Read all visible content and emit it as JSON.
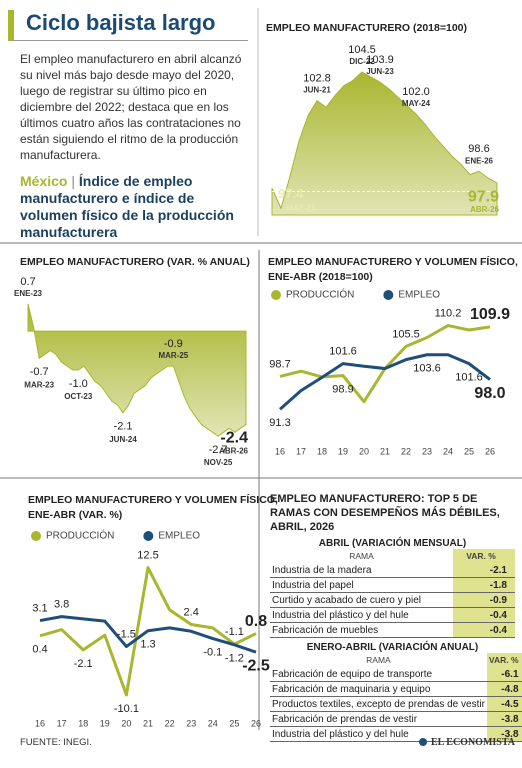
{
  "header": {
    "title": "Ciclo bajista largo",
    "body": "El empleo manufacturero en abril alcanzó su nivel más bajo desde mayo del 2020, luego de registrar su último pico en diciembre del 2022; destaca que en los últimos cuatro años las contrataciones no están siguiendo el ritmo de la producción manufacturera.",
    "country": "México",
    "subtitle": "Índice de empleo manufacturero e índice de volumen físico de la producción manufacturera"
  },
  "chart_data": [
    {
      "type": "area",
      "title": "EMPLEO MANUFACTURERO (2018=100)",
      "color": "#a9b62f",
      "categories": [
        null,
        null,
        null,
        null,
        null,
        "JUN-21",
        null,
        null,
        null,
        null,
        "DIC-22",
        null,
        "JUN-23",
        null,
        null,
        null,
        "MAY-24",
        null,
        null,
        null,
        null,
        null,
        null,
        "ENE-26",
        null,
        "ABR-26"
      ],
      "values": [
        97.6,
        96.4,
        98.3,
        100.4,
        101.9,
        102.8,
        102.4,
        103.1,
        103.7,
        104.0,
        104.5,
        104.2,
        103.9,
        103.5,
        103.0,
        102.5,
        102.0,
        101.4,
        100.7,
        100.1,
        99.5,
        99.0,
        98.4,
        98.6,
        98.2,
        97.9
      ],
      "value_labels": [
        null,
        null,
        null,
        null,
        null,
        "102.8",
        null,
        null,
        null,
        null,
        "104.5",
        null,
        "103.9",
        null,
        null,
        null,
        "102.0",
        null,
        null,
        null,
        null,
        null,
        null,
        "98.6",
        null,
        "97.9"
      ],
      "ref_line": {
        "value": 97.4,
        "label": "MAY-25"
      },
      "ylim": [
        96,
        104.5
      ]
    },
    {
      "type": "area",
      "title": "EMPLEO MANUFACTURERO (VAR. % ANUAL)",
      "color": "#a9b62f",
      "categories": [
        "ENE-23",
        null,
        "MAR-23",
        null,
        null,
        null,
        null,
        null,
        null,
        "OCT-23",
        null,
        null,
        null,
        null,
        null,
        null,
        null,
        "JUN-24",
        null,
        null,
        null,
        null,
        null,
        null,
        null,
        null,
        "MAR-25",
        null,
        null,
        null,
        null,
        null,
        null,
        null,
        "NOV-25",
        null,
        null,
        null,
        null,
        "ABR-26"
      ],
      "values": [
        0.7,
        0.1,
        -0.7,
        -0.6,
        -0.5,
        -0.6,
        -0.8,
        -0.9,
        -1.0,
        -1.0,
        -0.9,
        -1.1,
        -1.3,
        -1.4,
        -1.6,
        -1.8,
        -1.9,
        -2.1,
        -1.9,
        -1.6,
        -1.5,
        -1.4,
        -1.2,
        -1.1,
        -1.0,
        -0.9,
        -0.9,
        -1.3,
        -1.7,
        -2.0,
        -2.2,
        -2.4,
        -2.5,
        -2.6,
        -2.7,
        -2.6,
        -2.5,
        -2.6,
        -2.5,
        -2.4
      ],
      "value_labels": [
        "0.7",
        null,
        "-0.7",
        null,
        null,
        null,
        null,
        null,
        null,
        "-1.0",
        null,
        null,
        null,
        null,
        null,
        null,
        null,
        "-2.1",
        null,
        null,
        null,
        null,
        null,
        null,
        null,
        null,
        "-0.9",
        null,
        null,
        null,
        null,
        null,
        null,
        null,
        "-2.7",
        null,
        null,
        null,
        null,
        "-2.4"
      ],
      "ylim": [
        -2.8,
        0.8
      ]
    },
    {
      "type": "line",
      "title": [
        "EMPLEO MANUFACTURERO Y VOLUMEN FÍSICO,",
        "ENE-ABR (2018=100)"
      ],
      "categories": [
        "16",
        "17",
        "18",
        "19",
        "20",
        "21",
        "22",
        "23",
        "24",
        "25",
        "26"
      ],
      "series": [
        {
          "name": "PRODUCCIÓN",
          "color": "#a9b62f",
          "values": [
            98.7,
            99.9,
            98.6,
            98.9,
            93.0,
            100.5,
            105.5,
            107.5,
            110.2,
            109.2,
            109.9
          ],
          "value_labels": [
            "98.7",
            null,
            null,
            "98.9",
            null,
            null,
            "105.5",
            null,
            "110.2",
            null,
            "109.9"
          ]
        },
        {
          "name": "EMPLEO",
          "color": "#1f4e79",
          "values": [
            91.3,
            95.5,
            98.5,
            101.6,
            101.0,
            100.5,
            102.5,
            103.6,
            103.6,
            101.6,
            98.0
          ],
          "value_labels": [
            "91.3",
            null,
            null,
            "101.6",
            null,
            null,
            null,
            "103.6",
            null,
            "101.6",
            "98.0"
          ]
        }
      ],
      "ylim": [
        90,
        111
      ]
    },
    {
      "type": "line",
      "title": [
        "EMPLEO MANUFACTURERO Y VOLUMEN FÍSICO,",
        "ENE-ABR (VAR. %)"
      ],
      "categories": [
        "16",
        "17",
        "18",
        "19",
        "20",
        "21",
        "22",
        "23",
        "24",
        "25",
        "26"
      ],
      "series": [
        {
          "name": "PRODUCCIÓN",
          "color": "#a9b62f",
          "values": [
            0.4,
            1.5,
            -2.1,
            0.5,
            -10.1,
            12.5,
            5.0,
            2.4,
            1.8,
            -1.1,
            0.8
          ],
          "value_labels": [
            "0.4",
            null,
            "-2.1",
            null,
            "-10.1",
            "12.5",
            null,
            "2.4",
            null,
            "-1.1",
            "0.8"
          ]
        },
        {
          "name": "EMPLEO",
          "color": "#1f4e79",
          "values": [
            3.1,
            3.8,
            3.4,
            3.0,
            -1.5,
            1.3,
            1.8,
            1.2,
            -0.1,
            -1.2,
            -2.5
          ],
          "value_labels": [
            "3.1",
            "3.8",
            null,
            null,
            "-1.5",
            "1.3",
            null,
            null,
            "-0.1",
            "-1.2",
            "-2.5"
          ]
        }
      ],
      "ylim": [
        -11,
        13.5
      ]
    }
  ],
  "table": {
    "title": "EMPLEO MANUFACTURERO: TOP 5 DE RAMAS CON DESEMPEÑOS MÁS DÉBILES, ABRIL, 2026",
    "sections": [
      {
        "title": "ABRIL (VARIACIÓN MENSUAL)",
        "header": [
          "RAMA",
          "VAR. %"
        ],
        "rows": [
          [
            "Industria de la madera",
            -2.1
          ],
          [
            "Industria del papel",
            -1.8
          ],
          [
            "Curtido y acabado de cuero y piel",
            -0.9
          ],
          [
            "Industria del plástico y del hule",
            -0.4
          ],
          [
            "Fabricación de muebles",
            -0.4
          ]
        ]
      },
      {
        "title": "ENERO-ABRIL (VARIACIÓN ANUAL)",
        "header": [
          "RAMA",
          "VAR. %"
        ],
        "rows": [
          [
            "Fabricación de equipo de transporte",
            -6.1
          ],
          [
            "Fabricación de maquinaria y equipo",
            -4.8
          ],
          [
            "Productos textiles, excepto de prendas de vestir",
            -4.5
          ],
          [
            "Fabricación de prendas de vestir",
            -3.8
          ],
          [
            "Industria del plástico y del hule",
            -3.8
          ]
        ]
      }
    ]
  },
  "footer": {
    "source": "FUENTE:  INEGI.",
    "brand": "EL ECONOMISTA"
  }
}
